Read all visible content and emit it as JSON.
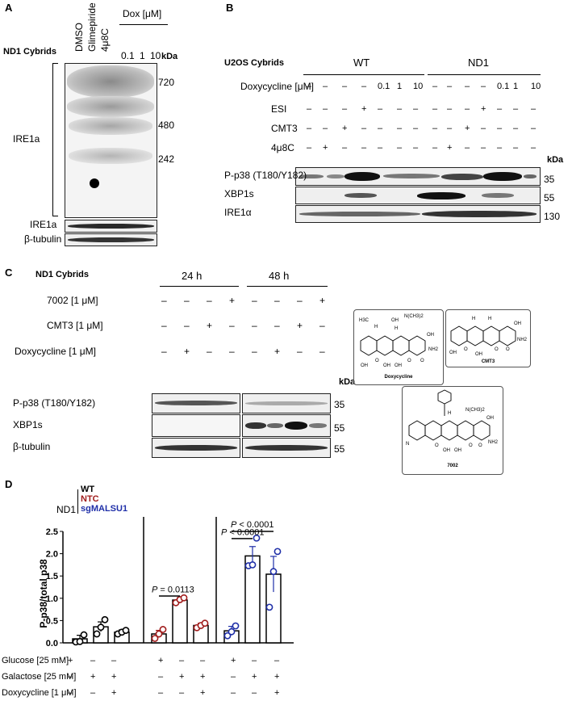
{
  "panel_a": {
    "letter": "A",
    "group_label": "ND1 Cybrids",
    "treatments": [
      "DMSO",
      "Glimepiride",
      "4μ8C"
    ],
    "dox_label": "Dox [μM]",
    "dox_doses": [
      "0.1",
      "1",
      "10"
    ],
    "kda_label": "kDa",
    "markers": [
      "720",
      "480",
      "242"
    ],
    "main_label": "IRE1a",
    "blot_labels": [
      "IRE1a",
      "β-tubulin"
    ]
  },
  "panel_b": {
    "letter": "B",
    "group_label": "U2OS Cybrids",
    "groups": [
      "WT",
      "ND1"
    ],
    "rows": [
      {
        "label": "Doxycycline [μM]",
        "cells": [
          "–",
          "–",
          "–",
          "–",
          "0.1",
          "1",
          "10",
          "–",
          "–",
          "–",
          "–",
          "0.1",
          "1",
          "10"
        ]
      },
      {
        "label": "ESI",
        "cells": [
          "–",
          "–",
          "–",
          "+",
          "–",
          "–",
          "–",
          "–",
          "–",
          "–",
          "+",
          "–",
          "–",
          "–"
        ]
      },
      {
        "label": "CMT3",
        "cells": [
          "–",
          "–",
          "+",
          "–",
          "–",
          "–",
          "–",
          "–",
          "–",
          "+",
          "–",
          "–",
          "–",
          "–"
        ]
      },
      {
        "label": "4μ8C",
        "cells": [
          "–",
          "+",
          "–",
          "–",
          "–",
          "–",
          "–",
          "–",
          "+",
          "–",
          "–",
          "–",
          "–",
          "–"
        ]
      }
    ],
    "kda_label": "kDa",
    "blots": [
      {
        "label": "P-p38 (T180/Y182)",
        "kda": "35"
      },
      {
        "label": "XBP1s",
        "kda": "55"
      },
      {
        "label": "IRE1α",
        "kda": "130"
      }
    ]
  },
  "panel_c": {
    "letter": "C",
    "group_label": "ND1 Cybrids",
    "times": [
      "24 h",
      "48 h"
    ],
    "rows": [
      {
        "label": "7002 [1 μM]",
        "cells": [
          "–",
          "–",
          "–",
          "+",
          "–",
          "–",
          "–",
          "+"
        ]
      },
      {
        "label": "CMT3 [1 μM]",
        "cells": [
          "–",
          "–",
          "+",
          "–",
          "–",
          "–",
          "+",
          "–"
        ]
      },
      {
        "label": "Doxycycline [1 μM]",
        "cells": [
          "–",
          "+",
          "–",
          "–",
          "–",
          "+",
          "–",
          "–"
        ]
      }
    ],
    "kda_label": "kDa",
    "blots": [
      {
        "label": "P-p38 (T180/Y182)",
        "kda": "35"
      },
      {
        "label": "XBP1s",
        "kda": "55"
      },
      {
        "label": "β-tubulin",
        "kda": "55"
      }
    ],
    "structures": [
      {
        "name": "Doxycycline",
        "groups": [
          "H3C",
          "H",
          "OH",
          "H",
          "N(CH3)2",
          "OH",
          "NH2",
          "OH",
          "O",
          "OH",
          "OH",
          "O",
          "O"
        ]
      },
      {
        "name": "CMT3",
        "groups": [
          "H",
          "H",
          "OH",
          "NH2",
          "OH",
          "O",
          "OH",
          "O",
          "O"
        ]
      },
      {
        "name": "7002",
        "groups": [
          "H",
          "N(CH3)2",
          "OH",
          "NH2",
          "N",
          "OH",
          "O",
          "OH",
          "O",
          "O"
        ]
      }
    ]
  },
  "panel_d": {
    "letter": "D",
    "legend_prefix": "ND1",
    "legend": [
      {
        "name": "WT",
        "color": "#000000"
      },
      {
        "name": "NTC",
        "color": "#a01c1c"
      },
      {
        "name": "sgMALSU1",
        "color": "#1f2fa8"
      }
    ],
    "condition_rows": [
      {
        "label": "Glucose [25 mM]",
        "cells": [
          "+",
          "–",
          "–",
          "+",
          "–",
          "–",
          "+",
          "–",
          "–"
        ]
      },
      {
        "label": "Galactose [25 mM]",
        "cells": [
          "–",
          "+",
          "+",
          "–",
          "+",
          "+",
          "–",
          "+",
          "+"
        ]
      },
      {
        "label": "Doxycycline [1 μM]",
        "cells": [
          "–",
          "–",
          "+",
          "–",
          "–",
          "+",
          "–",
          "–",
          "+"
        ]
      }
    ],
    "significance": [
      {
        "p_prefix": "P",
        "p_text": " = 0.0113"
      },
      {
        "p_prefix": "P",
        "p_text": " < 0.0001"
      },
      {
        "p_prefix": "P",
        "p_text": " < 0.0001"
      }
    ]
  },
  "chart_data": {
    "type": "bar",
    "ylabel": "P-p38/total p38",
    "ylim": [
      0,
      2.5
    ],
    "yticks": [
      "0.0",
      "0.5",
      "1.0",
      "1.5",
      "2.0",
      "2.5"
    ],
    "bars": [
      {
        "group": "WT",
        "value": 0.09,
        "err": 0.08,
        "points": [
          0.02,
          0.03,
          0.18
        ],
        "color": "#000000"
      },
      {
        "group": "WT",
        "value": 0.36,
        "err": 0.11,
        "points": [
          0.2,
          0.35,
          0.52
        ],
        "color": "#000000"
      },
      {
        "group": "WT",
        "value": 0.24,
        "err": 0.05,
        "points": [
          0.2,
          0.24,
          0.28
        ],
        "color": "#000000"
      },
      {
        "group": "NTC",
        "value": 0.2,
        "err": 0.08,
        "points": [
          0.1,
          0.2,
          0.3
        ],
        "color": "#a01c1c"
      },
      {
        "group": "NTC",
        "value": 0.96,
        "err": 0.05,
        "points": [
          0.9,
          0.97,
          1.01
        ],
        "color": "#a01c1c"
      },
      {
        "group": "NTC",
        "value": 0.39,
        "err": 0.05,
        "points": [
          0.34,
          0.39,
          0.44
        ],
        "color": "#a01c1c"
      },
      {
        "group": "sgMALSU1",
        "value": 0.27,
        "err": 0.1,
        "points": [
          0.16,
          0.25,
          0.38
        ],
        "color": "#1f2fa8"
      },
      {
        "group": "sgMALSU1",
        "value": 1.95,
        "err": 0.21,
        "points": [
          1.73,
          1.75,
          2.35
        ],
        "color": "#1f2fa8"
      },
      {
        "group": "sgMALSU1",
        "value": 1.54,
        "err": 0.4,
        "points": [
          0.8,
          1.6,
          2.05
        ],
        "color": "#1f2fa8"
      }
    ]
  }
}
